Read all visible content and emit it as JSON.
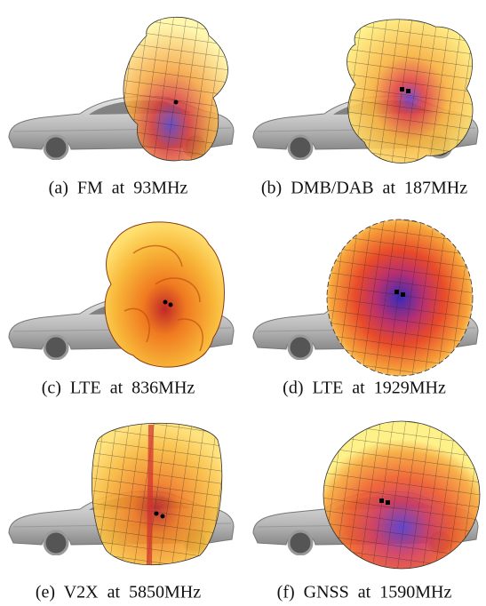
{
  "figure": {
    "panels": [
      {
        "caption": "(a) FM at 93MHz"
      },
      {
        "caption": "(b) DMB/DAB at 187MHz"
      },
      {
        "caption": "(c) LTE at 836MHz"
      },
      {
        "caption": "(d) LTE at 1929MHz"
      },
      {
        "caption": "(e) V2X at 5850MHz"
      },
      {
        "caption": "(f) GNSS at 1590MHz"
      }
    ]
  }
}
